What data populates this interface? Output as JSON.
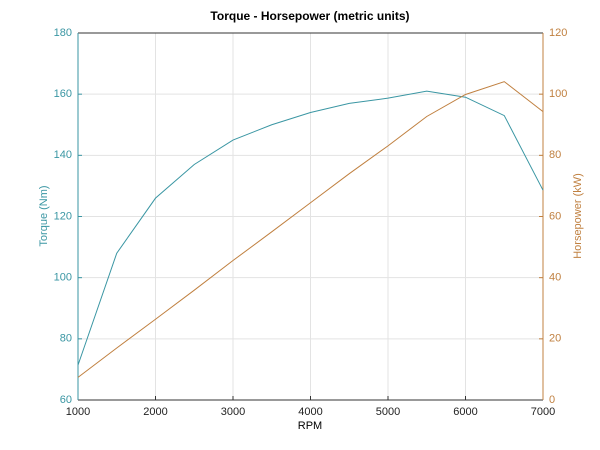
{
  "chart_data": {
    "type": "line",
    "title": "Torque - Horsepower (metric units)",
    "xlabel": "RPM",
    "ylabel": "Torque (Nm)",
    "y2label": "Horsepower (kW)",
    "x": [
      1000,
      1500,
      2000,
      2500,
      3000,
      3500,
      4000,
      4500,
      5000,
      5500,
      6000,
      6500,
      7000
    ],
    "series": [
      {
        "color": "#3a96a3",
        "values": [
          71.4,
          108,
          126,
          137,
          145,
          150,
          154,
          157,
          158.7,
          161,
          159,
          153,
          128.6
        ]
      },
      {
        "color": "#c08040",
        "axis": "y2",
        "values": [
          7.4,
          17.0,
          26.4,
          35.9,
          45.6,
          55.0,
          64.5,
          74.0,
          83.1,
          92.7,
          99.9,
          104.1,
          94.3
        ]
      }
    ],
    "xlim": [
      1000,
      7000
    ],
    "xticks": [
      1000,
      2000,
      3000,
      4000,
      5000,
      6000,
      7000
    ],
    "ylim": [
      60,
      180
    ],
    "yticks": [
      60,
      80,
      100,
      120,
      140,
      160,
      180
    ],
    "y2lim": [
      0,
      120
    ],
    "y2ticks": [
      0,
      20,
      40,
      60,
      80,
      100,
      120
    ],
    "grid": true
  }
}
